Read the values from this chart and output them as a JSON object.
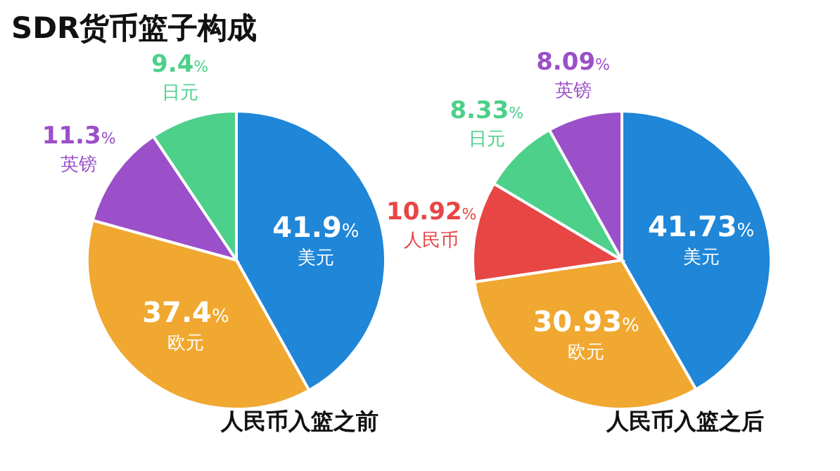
{
  "chart_data": [
    {
      "type": "pie",
      "title": "SDR货币篮子构成",
      "xlabel": "人民币入篮之前",
      "categories": [
        "美元",
        "欧元",
        "英镑",
        "日元"
      ],
      "values": [
        41.9,
        37.4,
        11.3,
        9.4
      ],
      "colors": [
        "#1f86d8",
        "#f0a830",
        "#9b4fc8",
        "#4cd08a"
      ],
      "value_labels": [
        "41.9%",
        "37.4%",
        "11.3%",
        "9.4%"
      ]
    },
    {
      "type": "pie",
      "xlabel": "人民币入篮之后",
      "categories": [
        "美元",
        "欧元",
        "人民币",
        "日元",
        "英镑"
      ],
      "values": [
        41.73,
        30.93,
        10.92,
        8.33,
        8.09
      ],
      "colors": [
        "#1f86d8",
        "#f0a830",
        "#e84545",
        "#4cd08a",
        "#9b4fc8"
      ],
      "value_labels": [
        "41.73%",
        "30.93%",
        "10.92%",
        "8.33%",
        "8.09%"
      ]
    }
  ]
}
